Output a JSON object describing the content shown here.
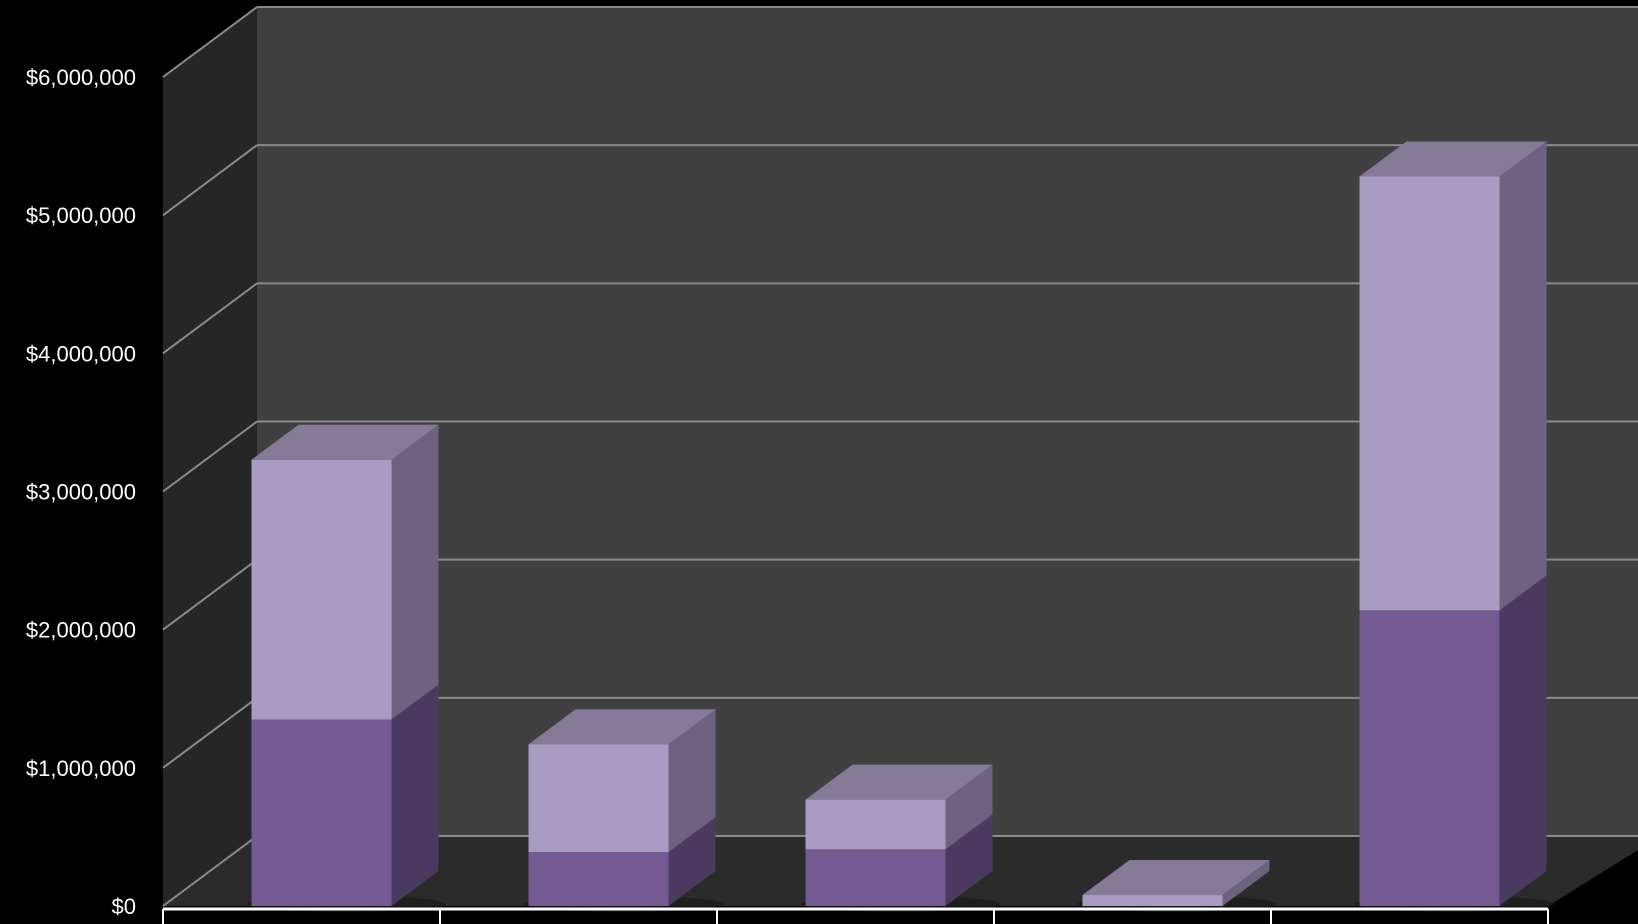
{
  "chart_data": {
    "type": "bar",
    "stacked": true,
    "three_d": true,
    "categories": [
      "",
      "",
      "",
      "",
      ""
    ],
    "series": [
      {
        "values": [
          1350000,
          390000,
          410000,
          0,
          2140000
        ]
      },
      {
        "values": [
          1880000,
          780000,
          360000,
          80000,
          3140000
        ]
      }
    ],
    "y_ticks": [
      "$0",
      "$1,000,000",
      "$2,000,000",
      "$3,000,000",
      "$4,000,000",
      "$5,000,000",
      "$6,000,000"
    ],
    "ylim": [
      0,
      6000000
    ],
    "grid": true,
    "legend": "none",
    "colors": {
      "background": "#000000",
      "back_wall": "#404040",
      "side_wall": "#262626",
      "floor": "#2b2b2b",
      "gridline": "#8a8a8a",
      "series_0_front": "#735a93",
      "series_0_side": "#4a3a60",
      "series_1_front": "#a89cc2",
      "series_1_side": "#6d6380",
      "series_1_top": "#857b98",
      "text": "#ffffff"
    }
  }
}
